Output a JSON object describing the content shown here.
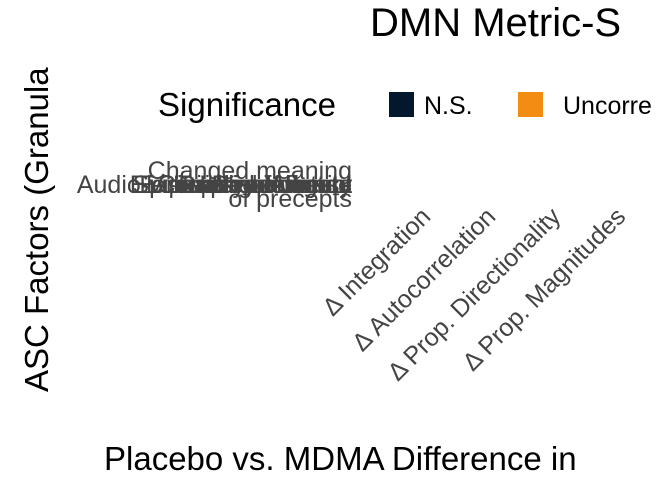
{
  "chart_data": {
    "type": "heatmap",
    "title": "DMN Metric-S",
    "xlabel": "Placebo vs. MDMA Difference in",
    "ylabel": "ASC Factors (Granula",
    "legend": {
      "title": "Significance",
      "placement": "top",
      "entries": [
        {
          "label": "N.S.",
          "color": "#03172d"
        },
        {
          "label": "Uncorre",
          "color": "#f28c12"
        }
      ]
    },
    "x_categories": [
      "Δ Integration",
      "Δ Autocorrelation",
      "Δ Prop. Directionality",
      "Δ Prop. Magnitudes"
    ],
    "y_overlapping_labels": [
      {
        "lines": [
          "Changed meaning",
          "of precepts"
        ]
      },
      {
        "lines": [
          "Experience of unity"
        ]
      },
      {
        "lines": [
          "Blissful state"
        ]
      },
      {
        "lines": [
          "Spiritual experience"
        ]
      },
      {
        "lines": [
          "Insightfulness"
        ]
      },
      {
        "lines": [
          "Disembodiment"
        ]
      },
      {
        "lines": [
          "Impaired control"
        ]
      },
      {
        "lines": [
          "Anxiety"
        ]
      },
      {
        "lines": [
          "Complex imagery"
        ]
      },
      {
        "lines": [
          "Elementary imagery"
        ]
      },
      {
        "lines": [
          "Audio-visual synesthesia"
        ]
      }
    ],
    "grid": false
  }
}
